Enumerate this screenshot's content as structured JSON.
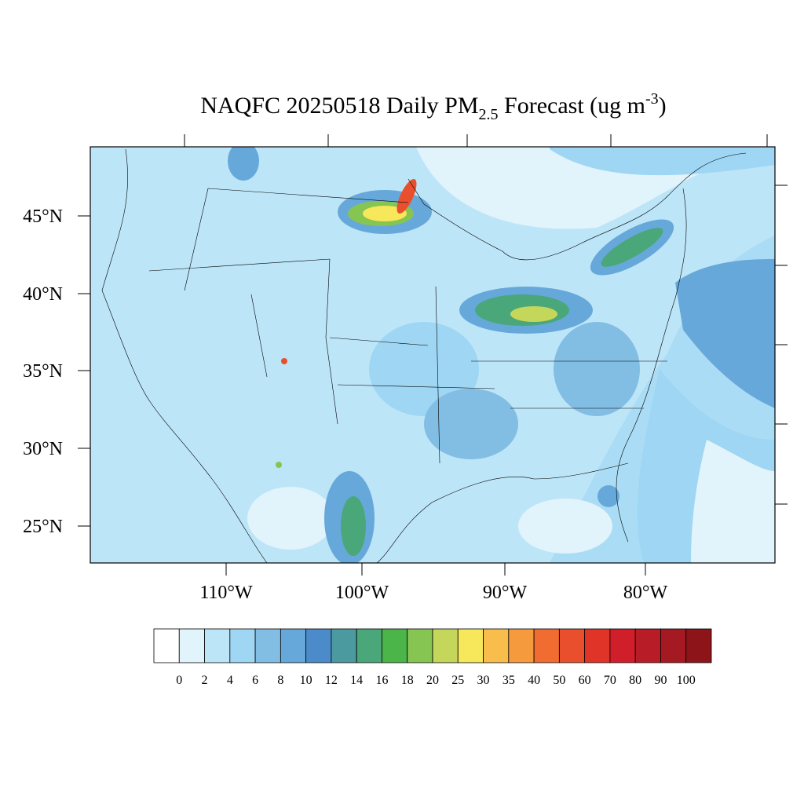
{
  "title": {
    "main": "NAQFC 20250518 Daily PM",
    "sub": "2.5",
    "rest": " Forecast (ug m",
    "sup": "-3",
    "close": ")"
  },
  "map": {
    "lat_labels": [
      "45°N",
      "40°N",
      "35°N",
      "30°N",
      "25°N"
    ],
    "lon_labels": [
      "110°W",
      "100°W",
      "90°W",
      "80°W"
    ]
  },
  "colorbar": {
    "colors": [
      "#ffffff",
      "#e1f3fb",
      "#bde5f8",
      "#9ed6f3",
      "#82bde4",
      "#67a8da",
      "#4b8bc9",
      "#4a9aa0",
      "#4aa77a",
      "#4cb54a",
      "#86c552",
      "#c4d75a",
      "#f7e75a",
      "#f8bd4b",
      "#f69a3e",
      "#f16c30",
      "#e94f2c",
      "#df3427",
      "#d01f2a",
      "#b81c27",
      "#a51a22",
      "#8d1519"
    ],
    "labels": [
      0,
      2,
      4,
      6,
      8,
      10,
      12,
      14,
      16,
      18,
      20,
      25,
      30,
      35,
      40,
      50,
      60,
      70,
      80,
      90,
      100
    ]
  }
}
